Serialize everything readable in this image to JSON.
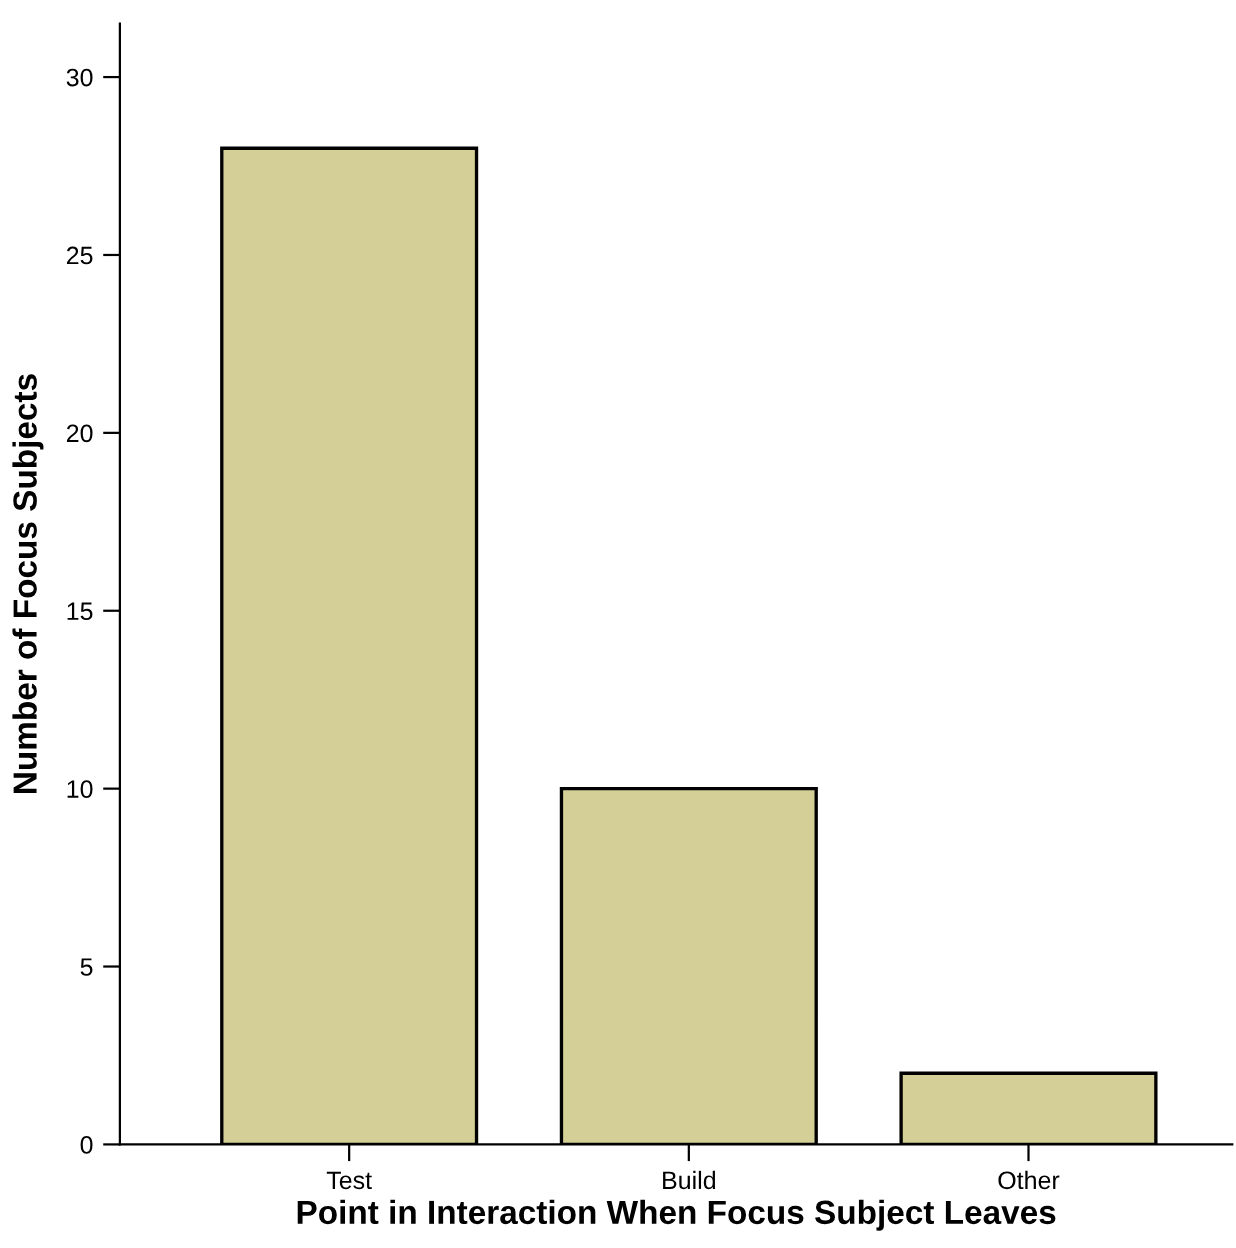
{
  "chart_data": {
    "type": "bar",
    "xlabel": "Point in Interaction When Focus Subject Leaves",
    "ylabel": "Number of Focus Subjects",
    "categories": [
      "Test",
      "Build",
      "Other"
    ],
    "values": [
      28,
      10,
      2
    ],
    "color": "#d4cf96",
    "ylim": [
      0,
      31.5
    ],
    "yticks": [
      0,
      5,
      10,
      15,
      20,
      25,
      30
    ],
    "grid": false,
    "legend": false
  }
}
